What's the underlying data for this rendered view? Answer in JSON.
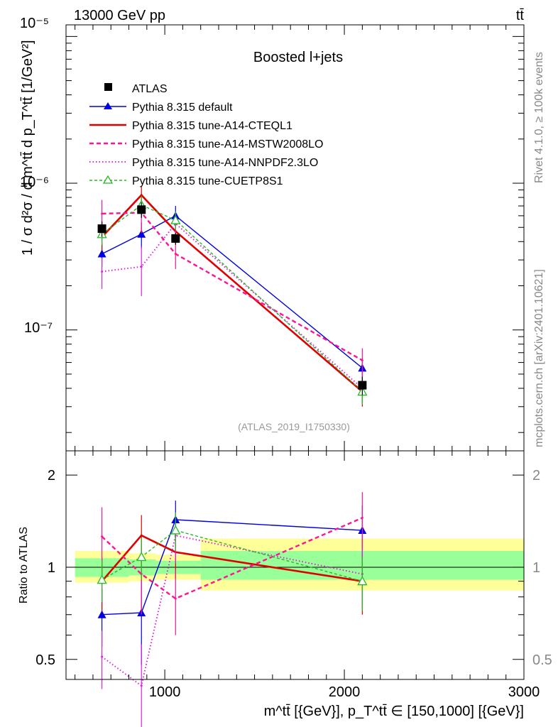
{
  "header": {
    "energy_label": "13000 GeV pp",
    "process_label": "tt̄"
  },
  "side_labels": {
    "rivet": "Rivet 4.1.0, ≥ 100k events",
    "source": "mcplots.cern.ch [arXiv:2401.10621]"
  },
  "colors": {
    "atlas": "#000000",
    "default": "#0000e0",
    "cteql1": "#e00000",
    "mstw": "#ff1493",
    "nnpdf": "#e020e0",
    "cuetp": "#22bb22",
    "band_inner": "#99ff99",
    "band_outer": "#ffff99"
  },
  "chart_data": [
    {
      "type": "line",
      "panel": "main",
      "title": "Boosted l+jets",
      "ylabel": "1 / σ d²σ / d m^tt̄ d p_T^tt̄ [1/GeV²]",
      "yscale": "log",
      "ylim": [
        1.5e-08,
        1.2e-05
      ],
      "xlim": [
        450,
        3000
      ],
      "y_tick_labels": [
        "10⁻⁵",
        "10⁻⁶",
        "10⁻⁷"
      ],
      "watermark": "(ATLAS_2019_I1750330)",
      "series": [
        {
          "key": "atlas",
          "name": "ATLAS",
          "x": [
            650,
            870,
            1060,
            2100
          ],
          "y": [
            4.9e-07,
            6.6e-07,
            4.2e-07,
            4.2e-08
          ],
          "yerr_lo": [
            4.3e-07,
            5.8e-07,
            3.8e-07,
            3.6e-08
          ],
          "yerr_hi": [
            5.5e-07,
            7.4e-07,
            4.6e-07,
            4.8e-08
          ]
        },
        {
          "key": "default",
          "name": "Pythia 8.315 default",
          "x": [
            650,
            870,
            1060,
            2100
          ],
          "y": [
            3.3e-07,
            4.5e-07,
            6e-07,
            5.5e-08
          ],
          "yerr_lo": [
            2.7e-07,
            3.6e-07,
            5.1e-07,
            4.6e-08
          ],
          "yerr_hi": [
            3.9e-07,
            5.4e-07,
            7e-07,
            6.4e-08
          ]
        },
        {
          "key": "cteql1",
          "name": "Pythia 8.315 tune-A14-CTEQL1",
          "x": [
            650,
            870,
            1060,
            2100
          ],
          "y": [
            4.3e-07,
            8.3e-07,
            4.7e-07,
            3.8e-08
          ],
          "yerr_lo": [
            3.5e-07,
            7e-07,
            3.9e-07,
            3e-08
          ],
          "yerr_hi": [
            5.1e-07,
            9.6e-07,
            5.5e-07,
            4.6e-08
          ]
        },
        {
          "key": "mstw",
          "name": "Pythia 8.315 tune-A14-MSTW2008LO",
          "x": [
            650,
            870,
            1060,
            2100
          ],
          "y": [
            6.2e-07,
            6.3e-07,
            3.3e-07,
            6.2e-08
          ],
          "yerr_lo": [
            4.6e-07,
            4.6e-07,
            2.6e-07,
            4.9e-08
          ],
          "yerr_hi": [
            7.7e-07,
            8e-07,
            4e-07,
            7.5e-08
          ]
        },
        {
          "key": "nnpdf",
          "name": "Pythia 8.315 tune-A14-NNPDF2.3LO",
          "x": [
            650,
            870,
            1060,
            2100
          ],
          "y": [
            2.5e-07,
            2.7e-07,
            5.3e-07,
            4e-08
          ],
          "yerr_lo": [
            1.9e-07,
            1.7e-07,
            4.3e-07,
            3.1e-08
          ],
          "yerr_hi": [
            3.1e-07,
            3.7e-07,
            6.3e-07,
            4.9e-08
          ]
        },
        {
          "key": "cuetp",
          "name": "Pythia 8.315 tune-CUETP8S1",
          "x": [
            650,
            870,
            1060,
            2100
          ],
          "y": [
            4.5e-07,
            7.1e-07,
            5.6e-07,
            3.8e-08
          ],
          "yerr_lo": [
            3.8e-07,
            6e-07,
            4.8e-07,
            3.1e-08
          ],
          "yerr_hi": [
            5.2e-07,
            8.2e-07,
            6.4e-07,
            4.5e-08
          ]
        }
      ]
    },
    {
      "type": "line",
      "panel": "ratio",
      "ylabel": "Ratio to ATLAS",
      "xlabel": "m^tt̄ [{GeV}], p_T^tt̄ ∈ [150,1000] [{GeV}]",
      "yscale": "log",
      "ylim": [
        0.43,
        2.4
      ],
      "xlim": [
        450,
        3000
      ],
      "y_ticks": [
        0.5,
        1,
        2
      ],
      "y_tick_labels": [
        "0.5",
        "1",
        "2"
      ],
      "x_ticks": [
        1000,
        2000,
        3000
      ],
      "x_tick_labels": [
        "1000",
        "2000",
        "3000"
      ],
      "bands": [
        {
          "x_lo": 500,
          "x_hi": 800,
          "inner": [
            0.93,
            1.07
          ],
          "outer": [
            0.89,
            1.13
          ]
        },
        {
          "x_lo": 800,
          "x_hi": 950,
          "inner": [
            0.94,
            1.06
          ],
          "outer": [
            0.9,
            1.11
          ]
        },
        {
          "x_lo": 950,
          "x_hi": 1200,
          "inner": [
            0.95,
            1.05
          ],
          "outer": [
            0.91,
            1.1
          ]
        },
        {
          "x_lo": 1200,
          "x_hi": 3000,
          "inner": [
            0.91,
            1.13
          ],
          "outer": [
            0.84,
            1.24
          ]
        }
      ],
      "series": [
        {
          "key": "default",
          "x": [
            650,
            870,
            1060,
            2100
          ],
          "y": [
            0.7,
            0.71,
            1.43,
            1.32
          ],
          "yerr_lo": [
            0.55,
            0.48,
            1.21,
            1.05
          ],
          "yerr_hi": [
            0.85,
            0.94,
            1.65,
            1.59
          ]
        },
        {
          "key": "cteql1",
          "x": [
            650,
            870,
            1060,
            2100
          ],
          "y": [
            0.9,
            1.27,
            1.12,
            0.9
          ],
          "yerr_lo": [
            0.72,
            1.06,
            0.92,
            0.7
          ],
          "yerr_hi": [
            1.08,
            1.48,
            1.32,
            1.1
          ]
        },
        {
          "key": "mstw",
          "x": [
            650,
            870,
            1060,
            2100
          ],
          "y": [
            1.26,
            0.95,
            0.79,
            1.45
          ],
          "yerr_lo": [
            0.95,
            0.7,
            0.6,
            1.14
          ],
          "yerr_hi": [
            1.57,
            1.2,
            0.98,
            1.76
          ]
        },
        {
          "key": "nnpdf",
          "x": [
            650,
            870,
            1060,
            2100
          ],
          "y": [
            0.51,
            0.41,
            1.27,
            0.95
          ],
          "yerr_lo": [
            0.4,
            0.26,
            1.03,
            0.74
          ],
          "yerr_hi": [
            0.62,
            0.56,
            1.51,
            1.16
          ]
        },
        {
          "key": "cuetp",
          "x": [
            650,
            870,
            1060,
            2100
          ],
          "y": [
            0.91,
            1.08,
            1.32,
            0.9
          ],
          "yerr_lo": [
            0.77,
            0.91,
            1.13,
            0.72
          ],
          "yerr_hi": [
            1.05,
            1.25,
            1.51,
            1.08
          ]
        }
      ]
    }
  ]
}
